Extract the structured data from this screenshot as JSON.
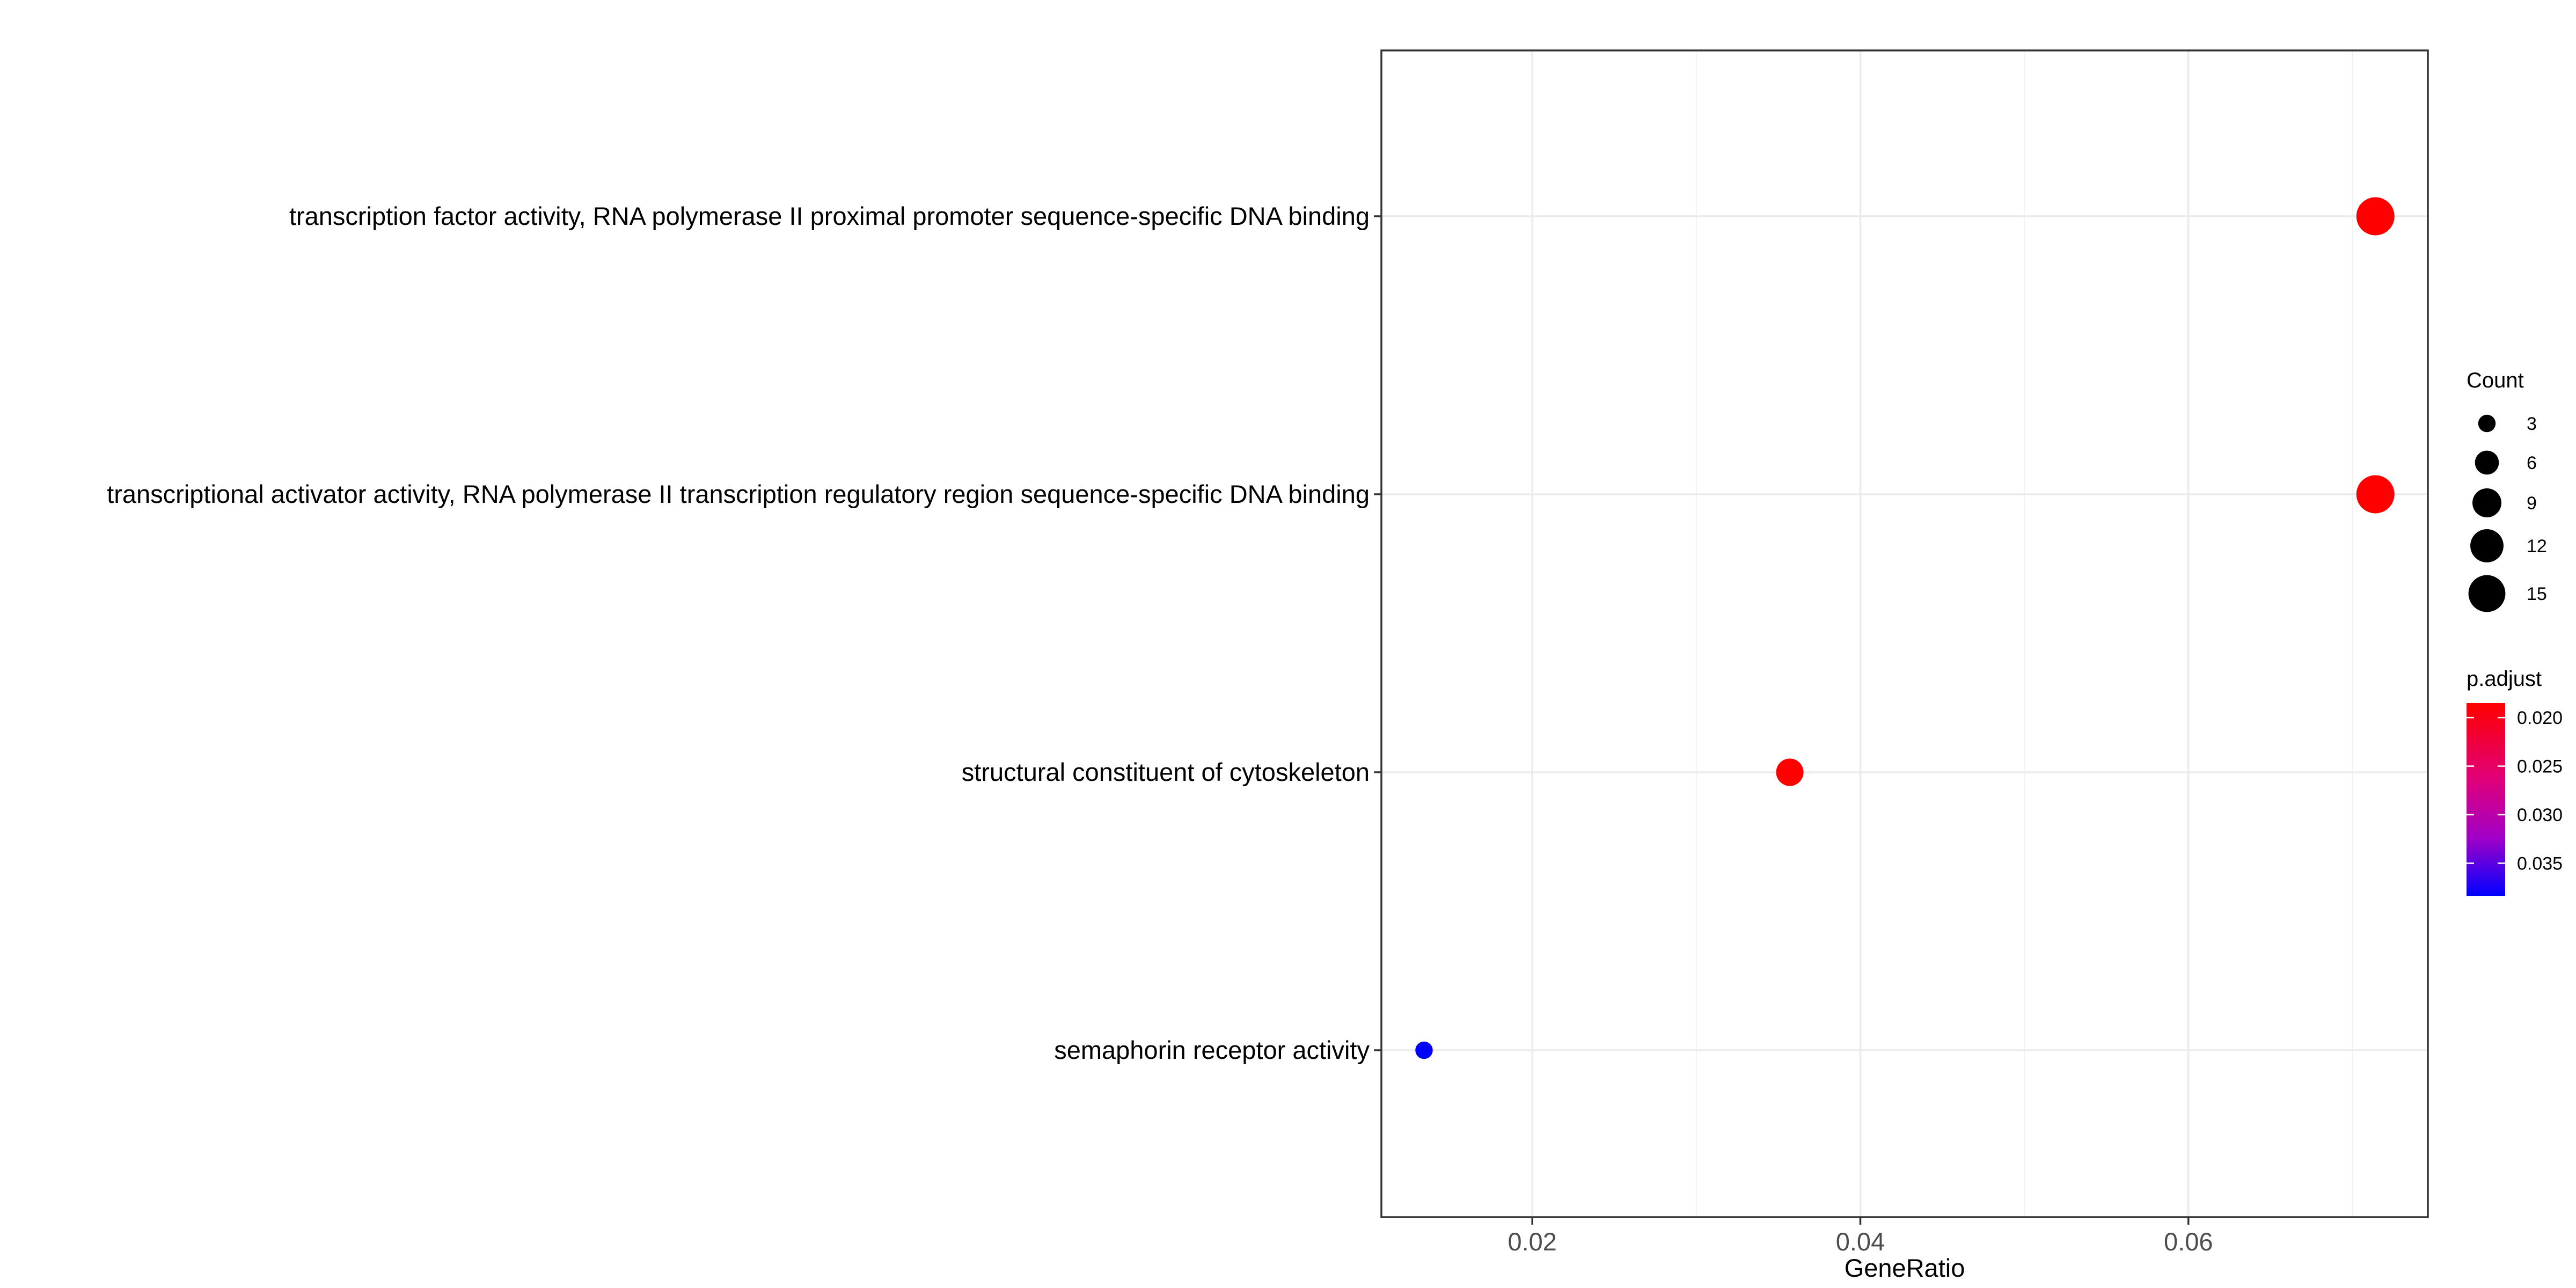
{
  "chart_data": {
    "type": "scatter",
    "title": "",
    "xlabel": "GeneRatio",
    "ylabel": "",
    "xlim": [
      0.0108,
      0.0746
    ],
    "xticks": [
      0.02,
      0.04,
      0.06
    ],
    "xtick_labels": [
      "0.02",
      "0.04",
      "0.06"
    ],
    "grid": true,
    "categories": [
      "transcription factor activity, RNA polymerase II proximal promoter sequence-specific DNA binding",
      "transcriptional activator activity, RNA polymerase II transcription regulatory region sequence-specific DNA binding",
      "structural constituent of cytoskeleton",
      "semaphorin receptor activity"
    ],
    "points": [
      {
        "term": "transcription factor activity, RNA polymerase II proximal promoter sequence-specific DNA binding",
        "gene_ratio": 0.0714,
        "count": 16,
        "p_adjust": 0.0185
      },
      {
        "term": "transcriptional activator activity, RNA polymerase II transcription regulatory region sequence-specific DNA binding",
        "gene_ratio": 0.0714,
        "count": 16,
        "p_adjust": 0.0185
      },
      {
        "term": "structural constituent of cytoskeleton",
        "gene_ratio": 0.0357,
        "count": 8,
        "p_adjust": 0.0185
      },
      {
        "term": "semaphorin receptor activity",
        "gene_ratio": 0.0134,
        "count": 3,
        "p_adjust": 0.0384
      }
    ],
    "legend_position": "right",
    "size_legend": {
      "title": "Count",
      "values": [
        3,
        6,
        9,
        12,
        15
      ],
      "labels": [
        "3",
        "6",
        "9",
        "12",
        "15"
      ]
    },
    "color_legend": {
      "title": "p.adjust",
      "range": [
        0.0185,
        0.0384
      ],
      "ticks": [
        0.02,
        0.025,
        0.03,
        0.035
      ],
      "tick_labels": [
        "0.020",
        "0.025",
        "0.030",
        "0.035"
      ],
      "low_color": "#ff0000",
      "high_color": "#0000ff"
    }
  }
}
